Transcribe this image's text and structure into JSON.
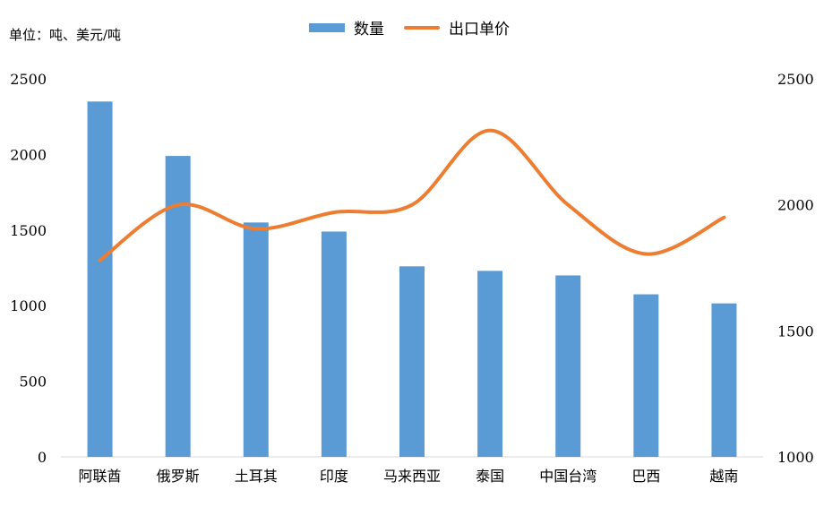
{
  "unit_label": "单位：吨、美元/吨",
  "legend": {
    "bar_label": "数量",
    "line_label": "出口单价"
  },
  "colors": {
    "bar": "#5b9bd5",
    "line": "#ed7d31",
    "axis": "#d9d9d9"
  },
  "chart_data": {
    "type": "bar",
    "categories": [
      "阿联酋",
      "俄罗斯",
      "土耳其",
      "印度",
      "马来西亚",
      "泰国",
      "中国台湾",
      "巴西",
      "越南"
    ],
    "series": [
      {
        "name": "数量",
        "type": "bar",
        "axis": "left",
        "values": [
          2350,
          1990,
          1550,
          1490,
          1260,
          1230,
          1200,
          1075,
          1015
        ]
      },
      {
        "name": "出口单价",
        "type": "line",
        "axis": "right",
        "smooth": true,
        "values": [
          1780,
          2000,
          1905,
          1970,
          2000,
          2295,
          2000,
          1805,
          1950
        ]
      }
    ],
    "y_left": {
      "min": 0,
      "max": 2500,
      "ticks": [
        0,
        500,
        1000,
        1500,
        2000,
        2500
      ]
    },
    "y_right": {
      "min": 1000,
      "max": 2500,
      "ticks": [
        1000,
        1500,
        2000,
        2500
      ]
    },
    "grid": false,
    "legend_position": "top-center"
  }
}
